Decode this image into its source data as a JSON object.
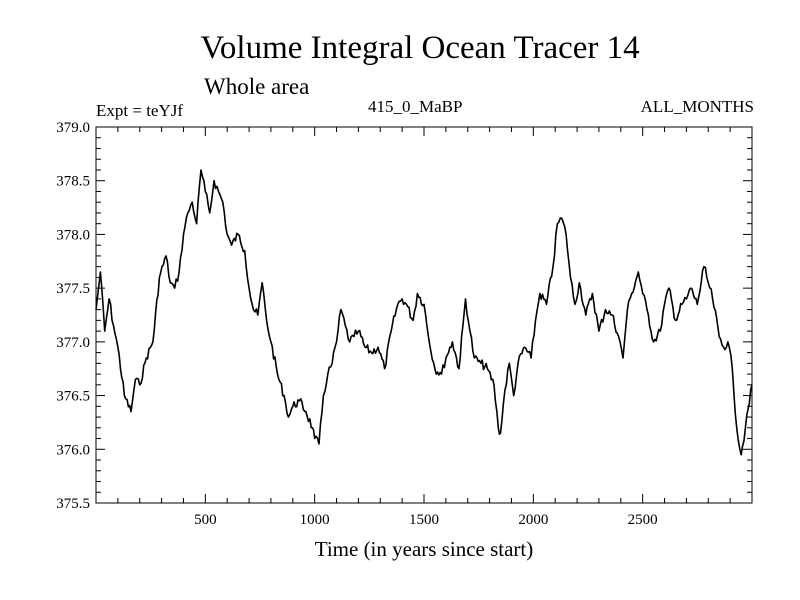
{
  "chart_data": {
    "type": "line",
    "title": "Volume Integral Ocean Tracer 14",
    "subtitle": "Whole area",
    "expt_label": "Expt = teYJf",
    "period_label": "415_0_MaBP",
    "months_label": "ALL_MONTHS",
    "xlabel": "Time (in years since start)",
    "ylabel": "",
    "xlim": [
      0,
      3000
    ],
    "ylim": [
      375.5,
      379.0
    ],
    "xticks": [
      500,
      1000,
      1500,
      2000,
      2500
    ],
    "yticks": [
      375.5,
      376.0,
      376.5,
      377.0,
      377.5,
      378.0,
      378.5,
      379.0
    ],
    "x_tick_labels": [
      "500",
      "1000",
      "1500",
      "2000",
      "2500"
    ],
    "y_tick_labels": [
      "375.5",
      "376.0",
      "376.5",
      "377.0",
      "377.5",
      "378.0",
      "378.5",
      "379.0"
    ],
    "grid": false,
    "series": [
      {
        "name": "Volume Integral Ocean Tracer 14",
        "x": [
          0,
          20,
          40,
          60,
          80,
          100,
          130,
          160,
          180,
          200,
          230,
          260,
          290,
          320,
          340,
          360,
          380,
          400,
          420,
          440,
          460,
          480,
          500,
          520,
          540,
          560,
          580,
          600,
          620,
          650,
          680,
          700,
          720,
          740,
          760,
          780,
          800,
          830,
          860,
          880,
          900,
          930,
          960,
          990,
          1000,
          1020,
          1040,
          1060,
          1080,
          1100,
          1120,
          1140,
          1160,
          1180,
          1200,
          1230,
          1260,
          1290,
          1320,
          1350,
          1380,
          1400,
          1420,
          1450,
          1470,
          1500,
          1520,
          1550,
          1580,
          1600,
          1630,
          1660,
          1690,
          1710,
          1730,
          1760,
          1790,
          1820,
          1840,
          1850,
          1870,
          1890,
          1910,
          1930,
          1960,
          1990,
          2010,
          2030,
          2060,
          2090,
          2110,
          2130,
          2150,
          2170,
          2190,
          2210,
          2240,
          2270,
          2300,
          2330,
          2360,
          2390,
          2410,
          2430,
          2450,
          2480,
          2500,
          2520,
          2550,
          2580,
          2600,
          2620,
          2650,
          2680,
          2700,
          2720,
          2750,
          2780,
          2800,
          2820,
          2850,
          2870,
          2890,
          2910,
          2930,
          2950,
          2970,
          3000
        ],
        "y": [
          377.3,
          377.65,
          377.1,
          377.4,
          377.15,
          376.95,
          376.5,
          376.35,
          376.65,
          376.6,
          376.85,
          377.0,
          377.6,
          377.8,
          377.55,
          377.5,
          377.65,
          378.0,
          378.2,
          378.3,
          378.1,
          378.6,
          378.4,
          378.2,
          378.5,
          378.4,
          378.3,
          378.0,
          377.9,
          378.0,
          377.85,
          377.5,
          377.3,
          377.25,
          377.55,
          377.2,
          377.0,
          376.7,
          376.5,
          376.3,
          376.4,
          376.45,
          376.35,
          376.2,
          376.1,
          376.05,
          376.5,
          376.7,
          376.8,
          377.0,
          377.3,
          377.15,
          377.0,
          377.05,
          377.1,
          376.95,
          376.9,
          376.95,
          376.75,
          377.1,
          377.35,
          377.4,
          377.35,
          377.2,
          377.45,
          377.35,
          377.05,
          376.75,
          376.7,
          376.85,
          377.0,
          376.75,
          377.4,
          377.1,
          376.85,
          376.8,
          376.75,
          376.6,
          376.2,
          376.15,
          376.55,
          376.8,
          376.5,
          376.8,
          376.95,
          376.85,
          377.2,
          377.45,
          377.35,
          377.7,
          378.1,
          378.15,
          378.0,
          377.6,
          377.35,
          377.55,
          377.25,
          377.45,
          377.1,
          377.3,
          377.25,
          377.05,
          376.85,
          377.3,
          377.45,
          377.65,
          377.45,
          377.3,
          377.0,
          377.1,
          377.35,
          377.5,
          377.2,
          377.35,
          377.4,
          377.5,
          377.35,
          377.7,
          377.55,
          377.4,
          377.05,
          376.95,
          377.0,
          376.75,
          376.2,
          375.95,
          376.2,
          376.6
        ]
      }
    ]
  }
}
